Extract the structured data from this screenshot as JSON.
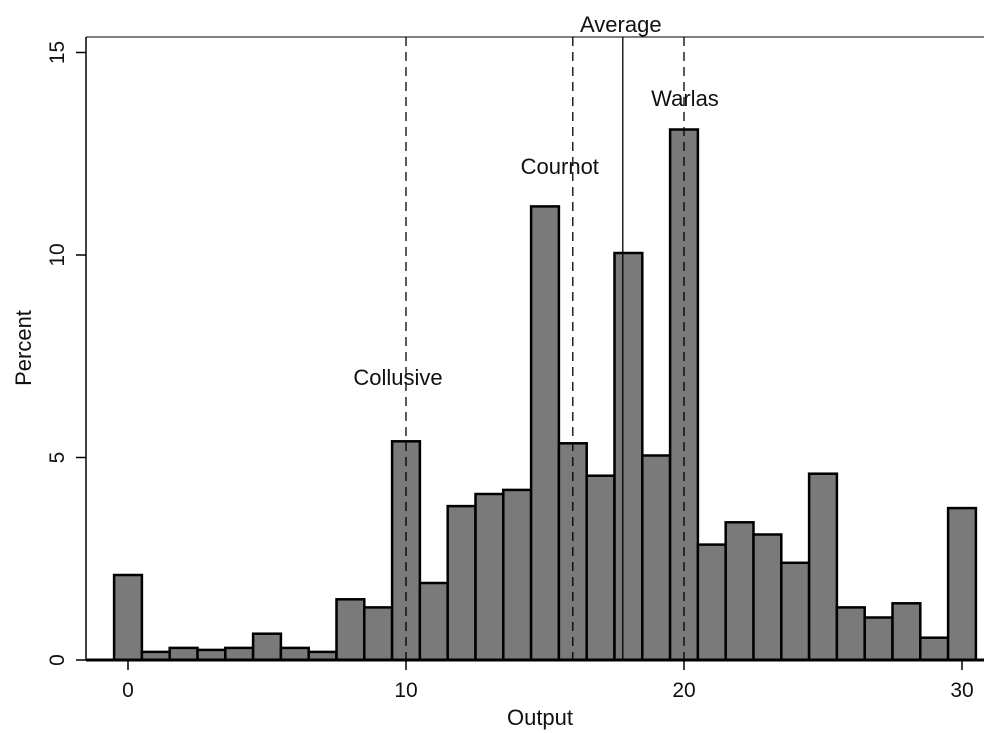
{
  "chart_data": {
    "type": "bar",
    "title": "",
    "xlabel": "Output",
    "ylabel": "Percent",
    "xlim": [
      -0.5,
      30.5
    ],
    "ylim": [
      0,
      15.5
    ],
    "x_ticks": [
      0,
      10,
      20,
      30
    ],
    "y_ticks": [
      0,
      5,
      10,
      15
    ],
    "grid": false,
    "legend": "none",
    "bin_width": 1,
    "bar_color": "#7a7a7a",
    "bar_edge_color": "#000000",
    "bins": [
      {
        "x": 0,
        "value": 2.1
      },
      {
        "x": 1,
        "value": 0.2
      },
      {
        "x": 2,
        "value": 0.3
      },
      {
        "x": 3,
        "value": 0.25
      },
      {
        "x": 4,
        "value": 0.3
      },
      {
        "x": 5,
        "value": 0.65
      },
      {
        "x": 6,
        "value": 0.3
      },
      {
        "x": 7,
        "value": 0.2
      },
      {
        "x": 8,
        "value": 1.5
      },
      {
        "x": 9,
        "value": 1.3
      },
      {
        "x": 10,
        "value": 5.4
      },
      {
        "x": 11,
        "value": 1.9
      },
      {
        "x": 12,
        "value": 3.8
      },
      {
        "x": 13,
        "value": 4.1
      },
      {
        "x": 14,
        "value": 4.2
      },
      {
        "x": 15,
        "value": 11.2
      },
      {
        "x": 16,
        "value": 5.35
      },
      {
        "x": 17,
        "value": 4.55
      },
      {
        "x": 18,
        "value": 10.05
      },
      {
        "x": 19,
        "value": 5.05
      },
      {
        "x": 20,
        "value": 13.1
      },
      {
        "x": 21,
        "value": 2.85
      },
      {
        "x": 22,
        "value": 3.4
      },
      {
        "x": 23,
        "value": 3.1
      },
      {
        "x": 24,
        "value": 2.4
      },
      {
        "x": 25,
        "value": 4.6
      },
      {
        "x": 26,
        "value": 1.3
      },
      {
        "x": 27,
        "value": 1.05
      },
      {
        "x": 28,
        "value": 1.4
      },
      {
        "x": 29,
        "value": 0.55
      },
      {
        "x": 30,
        "value": 3.75
      }
    ],
    "reference_lines": [
      {
        "label": "Collusive",
        "x": 10,
        "style": "dashed"
      },
      {
        "label": "Cournot",
        "x": 16,
        "style": "dashed"
      },
      {
        "label": "Average",
        "x": 17.8,
        "style": "solid"
      },
      {
        "label": "Warlas",
        "x": 20,
        "style": "dashed"
      }
    ]
  }
}
